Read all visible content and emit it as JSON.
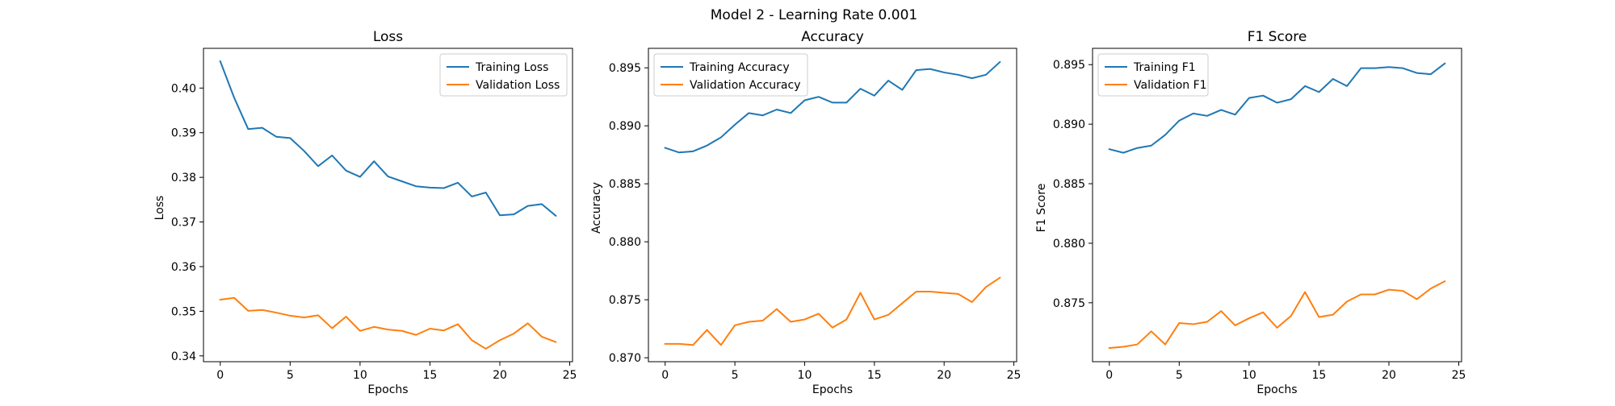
{
  "figure": {
    "suptitle": "Model 2 - Learning Rate 0.001",
    "background": "#ffffff"
  },
  "colors": {
    "training": "#1f77b4",
    "validation": "#ff7f0e"
  },
  "chart_data": [
    {
      "type": "line",
      "title": "Loss",
      "xlabel": "Epochs",
      "ylabel": "Loss",
      "xlim": [
        -1.2,
        25.2
      ],
      "ylim": [
        0.3387,
        0.4089
      ],
      "xticks": [
        0,
        5,
        10,
        15,
        20,
        25
      ],
      "yticks": [
        0.34,
        0.35,
        0.36,
        0.37,
        0.38,
        0.39,
        0.4
      ],
      "ytick_labels": [
        "0.34",
        "0.35",
        "0.36",
        "0.37",
        "0.38",
        "0.39",
        "0.40"
      ],
      "legend": "top-right",
      "grid": false,
      "x": [
        0,
        1,
        2,
        3,
        4,
        5,
        6,
        7,
        8,
        9,
        10,
        11,
        12,
        13,
        14,
        15,
        16,
        17,
        18,
        19,
        20,
        21,
        22,
        23,
        24
      ],
      "series": [
        {
          "name": "Training Loss",
          "color": "#1f77b4",
          "values": [
            0.406,
            0.3978,
            0.3908,
            0.3911,
            0.3891,
            0.3888,
            0.3859,
            0.3825,
            0.3849,
            0.3815,
            0.3801,
            0.3836,
            0.3802,
            0.3791,
            0.378,
            0.3777,
            0.3776,
            0.3788,
            0.3757,
            0.3766,
            0.3715,
            0.3717,
            0.3736,
            0.374,
            0.3714
          ]
        },
        {
          "name": "Validation Loss",
          "color": "#ff7f0e",
          "values": [
            0.3526,
            0.353,
            0.3501,
            0.3503,
            0.3497,
            0.349,
            0.3486,
            0.3491,
            0.3462,
            0.3488,
            0.3456,
            0.3465,
            0.3459,
            0.3456,
            0.3447,
            0.3461,
            0.3457,
            0.3471,
            0.3435,
            0.3416,
            0.3435,
            0.345,
            0.3473,
            0.3443,
            0.3431
          ]
        }
      ]
    },
    {
      "type": "line",
      "title": "Accuracy",
      "xlabel": "Epochs",
      "ylabel": "Accuracy",
      "xlim": [
        -1.2,
        25.2
      ],
      "ylim": [
        0.86966,
        0.89668
      ],
      "xticks": [
        0,
        5,
        10,
        15,
        20,
        25
      ],
      "yticks": [
        0.87,
        0.875,
        0.88,
        0.885,
        0.89,
        0.895
      ],
      "ytick_labels": [
        "0.870",
        "0.875",
        "0.880",
        "0.885",
        "0.890",
        "0.895"
      ],
      "legend": "top-left",
      "grid": false,
      "x": [
        0,
        1,
        2,
        3,
        4,
        5,
        6,
        7,
        8,
        9,
        10,
        11,
        12,
        13,
        14,
        15,
        16,
        17,
        18,
        19,
        20,
        21,
        22,
        23,
        24
      ],
      "series": [
        {
          "name": "Training Accuracy",
          "color": "#1f77b4",
          "values": [
            0.8881,
            0.8877,
            0.8878,
            0.8883,
            0.889,
            0.8901,
            0.8911,
            0.8909,
            0.8914,
            0.8911,
            0.8922,
            0.8925,
            0.892,
            0.892,
            0.8932,
            0.8926,
            0.8939,
            0.8931,
            0.8948,
            0.8949,
            0.8946,
            0.8944,
            0.8941,
            0.8944,
            0.8955
          ]
        },
        {
          "name": "Validation Accuracy",
          "color": "#ff7f0e",
          "values": [
            0.8712,
            0.8712,
            0.8711,
            0.8724,
            0.8711,
            0.8728,
            0.8731,
            0.8732,
            0.8742,
            0.8731,
            0.8733,
            0.8738,
            0.8726,
            0.8733,
            0.8756,
            0.8733,
            0.8737,
            0.8747,
            0.8757,
            0.8757,
            0.8756,
            0.8755,
            0.8748,
            0.8761,
            0.8769
          ]
        }
      ]
    },
    {
      "type": "line",
      "title": "F1 Score",
      "xlabel": "Epochs",
      "ylabel": "F1 Score",
      "xlim": [
        -1.2,
        25.2
      ],
      "ylim": [
        0.87005,
        0.89637
      ],
      "xticks": [
        0,
        5,
        10,
        15,
        20,
        25
      ],
      "yticks": [
        0.875,
        0.88,
        0.885,
        0.89,
        0.895
      ],
      "ytick_labels": [
        "0.875",
        "0.880",
        "0.885",
        "0.890",
        "0.895"
      ],
      "legend": "top-left",
      "grid": false,
      "x": [
        0,
        1,
        2,
        3,
        4,
        5,
        6,
        7,
        8,
        9,
        10,
        11,
        12,
        13,
        14,
        15,
        16,
        17,
        18,
        19,
        20,
        21,
        22,
        23,
        24
      ],
      "series": [
        {
          "name": "Training F1",
          "color": "#1f77b4",
          "values": [
            0.8879,
            0.8876,
            0.888,
            0.8882,
            0.8891,
            0.8903,
            0.8909,
            0.8907,
            0.8912,
            0.8908,
            0.8922,
            0.8924,
            0.8918,
            0.8921,
            0.8932,
            0.8927,
            0.8938,
            0.8932,
            0.8947,
            0.8947,
            0.8948,
            0.8947,
            0.8943,
            0.8942,
            0.8951
          ]
        },
        {
          "name": "Validation F1",
          "color": "#ff7f0e",
          "values": [
            0.8712,
            0.8713,
            0.8715,
            0.8726,
            0.8715,
            0.8733,
            0.8732,
            0.8734,
            0.8743,
            0.8731,
            0.8737,
            0.8742,
            0.8729,
            0.8739,
            0.8759,
            0.8738,
            0.874,
            0.8751,
            0.8757,
            0.8757,
            0.8761,
            0.876,
            0.8753,
            0.8762,
            0.8768
          ]
        }
      ]
    }
  ]
}
